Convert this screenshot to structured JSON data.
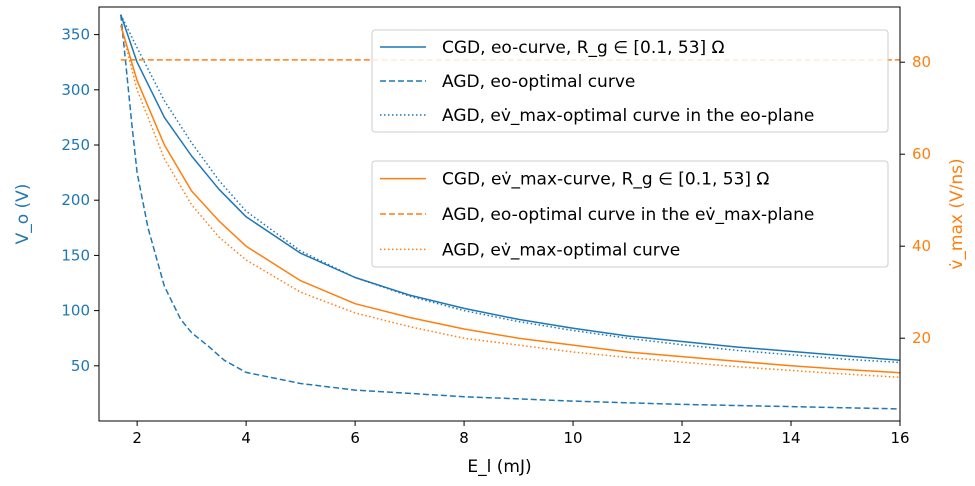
{
  "chart_data": {
    "type": "line",
    "xlabel": "E_l (mJ)",
    "ylabel_left": "V_o (V)",
    "ylabel_right": "v̇_max (V/ns)",
    "xlim": [
      1.3,
      16
    ],
    "ylim_left": [
      0,
      375
    ],
    "ylim_right": [
      2,
      92
    ],
    "xticks": [
      2,
      4,
      6,
      8,
      10,
      12,
      14,
      16
    ],
    "yticks_left": [
      50,
      100,
      150,
      200,
      250,
      300,
      350
    ],
    "yticks_right": [
      20,
      40,
      60,
      80
    ],
    "grid": false,
    "colors": {
      "blue": "#1f77b4",
      "orange": "#ff7f0e",
      "axis": "#000000"
    },
    "legends": [
      {
        "placement": "top-right",
        "entries": [
          {
            "label": "CGD, eo-curve, R_g ∈ [0.1, 53] Ω",
            "color": "#1f77b4",
            "style": "solid"
          },
          {
            "label": "AGD, eo-optimal curve",
            "color": "#1f77b4",
            "style": "dashed"
          },
          {
            "label": "AGD, ev̇_max-optimal curve in the eo-plane",
            "color": "#1f77b4",
            "style": "dotted"
          }
        ]
      },
      {
        "placement": "upper-right",
        "entries": [
          {
            "label": "CGD, ev̇_max-curve, R_g ∈ [0.1, 53] Ω",
            "color": "#ff7f0e",
            "style": "solid"
          },
          {
            "label": "AGD, eo-optimal curve in the ev̇_max-plane",
            "color": "#ff7f0e",
            "style": "dashed"
          },
          {
            "label": "AGD, ev̇_max-optimal curve",
            "color": "#ff7f0e",
            "style": "dotted"
          }
        ]
      }
    ],
    "series": [
      {
        "name": "CGD, eo-curve, R_g ∈ [0.1, 53] Ω",
        "axis": "left",
        "color": "#1f77b4",
        "style": "solid",
        "x": [
          1.7,
          2,
          2.5,
          3,
          3.5,
          4,
          5,
          6,
          7,
          8,
          9,
          10,
          11,
          12,
          13,
          14,
          15,
          16
        ],
        "y": [
          368,
          325,
          275,
          240,
          210,
          185,
          152,
          130,
          114,
          102,
          92,
          84,
          77,
          72,
          67,
          63,
          59,
          55
        ]
      },
      {
        "name": "AGD, eo-optimal curve",
        "axis": "left",
        "color": "#1f77b4",
        "style": "dashed",
        "x": [
          1.7,
          1.8,
          1.9,
          2,
          2.2,
          2.5,
          2.8,
          3,
          3.3,
          3.6,
          4,
          5,
          6,
          7,
          8,
          9,
          10,
          11,
          12,
          13,
          14,
          15,
          16
        ],
        "y": [
          368,
          320,
          270,
          225,
          175,
          122,
          92,
          80,
          68,
          55,
          44,
          34,
          28,
          25,
          22,
          20,
          18,
          16.5,
          15,
          14,
          13,
          12,
          11
        ]
      },
      {
        "name": "AGD, ev̇_max-optimal curve in the eo-plane",
        "axis": "left",
        "color": "#1f77b4",
        "style": "dotted",
        "x": [
          1.7,
          2,
          2.5,
          3,
          3.5,
          4,
          5,
          6,
          7,
          8,
          9,
          10,
          11,
          12,
          13,
          14,
          15,
          16
        ],
        "y": [
          368,
          338,
          290,
          252,
          218,
          190,
          154,
          130,
          113,
          100,
          90,
          82,
          75,
          69,
          64,
          60,
          56,
          53
        ]
      },
      {
        "name": "CGD, ev̇_max-curve, R_g ∈ [0.1, 53] Ω",
        "axis": "right",
        "color": "#ff7f0e",
        "style": "solid",
        "x": [
          1.7,
          2,
          2.5,
          3,
          3.5,
          4,
          5,
          6,
          7,
          8,
          9,
          10,
          11,
          12,
          13,
          14,
          15,
          16
        ],
        "y": [
          88,
          76,
          62,
          52,
          45.5,
          40,
          32.5,
          27.5,
          24.5,
          22,
          20,
          18.5,
          17,
          16,
          15,
          14,
          13.2,
          12.5
        ]
      },
      {
        "name": "AGD, eo-optimal curve in the ev̇_max-plane",
        "axis": "right",
        "color": "#ff7f0e",
        "style": "dashed",
        "x": [
          1.7,
          16
        ],
        "y": [
          80.5,
          80.5
        ]
      },
      {
        "name": "AGD, ev̇_max-optimal curve",
        "axis": "right",
        "color": "#ff7f0e",
        "style": "dotted",
        "x": [
          1.7,
          2,
          2.5,
          3,
          3.5,
          4,
          5,
          6,
          7,
          8,
          9,
          10,
          11,
          12,
          13,
          14,
          15,
          16
        ],
        "y": [
          88,
          74,
          59,
          49,
          42,
          37,
          30,
          25.5,
          22.5,
          20,
          18.5,
          17,
          15.8,
          14.8,
          13.8,
          13,
          12.2,
          11.5
        ]
      }
    ]
  }
}
